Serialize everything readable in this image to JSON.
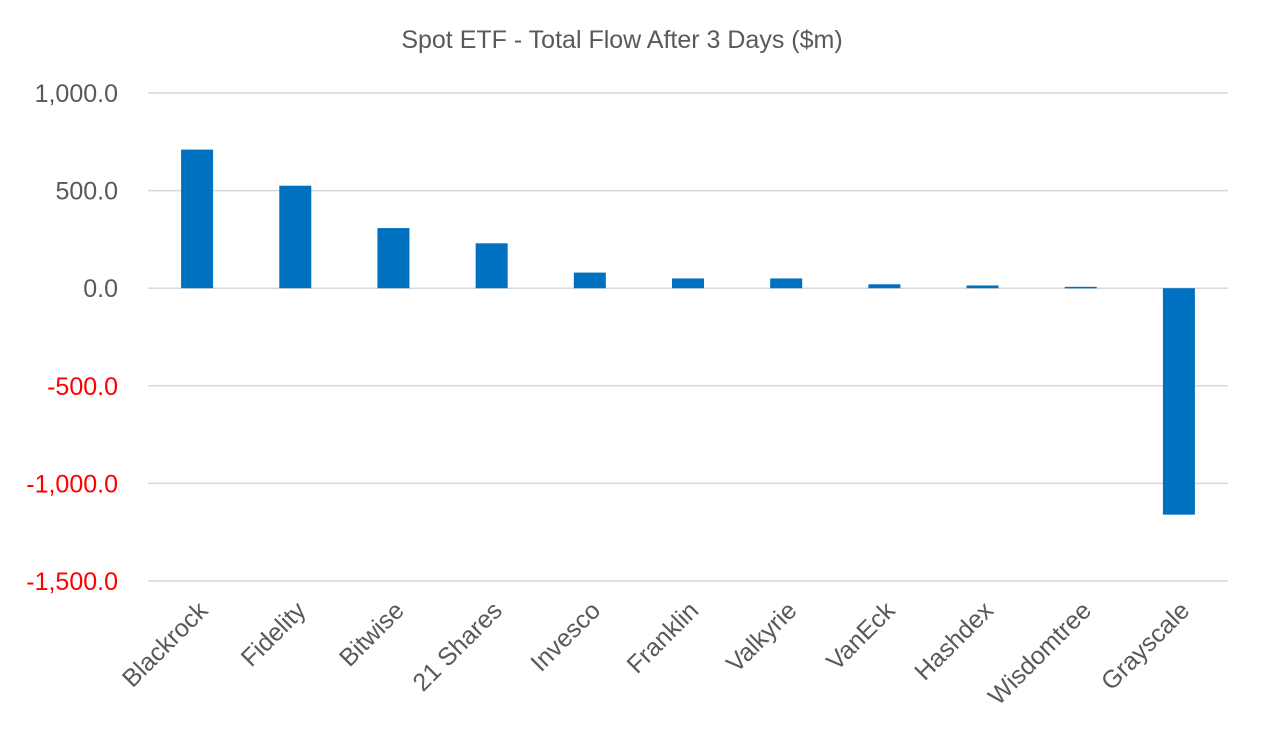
{
  "chart_data": {
    "type": "bar",
    "title": "Spot ETF - Total Flow After 3 Days ($m)",
    "xlabel": "",
    "ylabel": "",
    "categories": [
      "Blackrock",
      "Fidelity",
      "Bitwise",
      "21 Shares",
      "Invesco",
      "Franklin",
      "Valkyrie",
      "VanEck",
      "Hashdex",
      "Wisdomtree",
      "Grayscale"
    ],
    "values": [
      710.0,
      525.0,
      308.0,
      230.0,
      80.0,
      50.0,
      50.0,
      20.0,
      14.0,
      7.0,
      -1160.0
    ],
    "ylim": [
      -1500,
      1000
    ],
    "yticks": [
      1000,
      500,
      0,
      -500,
      -1000,
      -1500
    ],
    "ytick_labels": [
      "1,000.0",
      "500.0",
      "0.0",
      "-500.0",
      "-1,000.0",
      "-1,500.0"
    ],
    "grid": true,
    "legend": "none",
    "colors": {
      "bar": "#0070C0",
      "gridline": "#D9D9D9",
      "text": "#595959",
      "negative_tick": "#FF0000"
    }
  }
}
